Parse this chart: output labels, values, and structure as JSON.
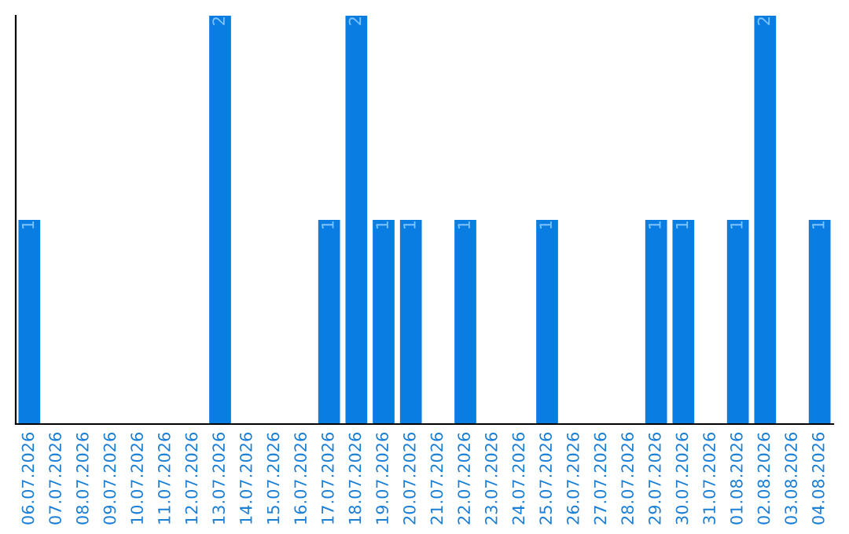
{
  "chart_data": {
    "type": "bar",
    "categories": [
      "06.07.2026",
      "07.07.2026",
      "08.07.2026",
      "09.07.2026",
      "10.07.2026",
      "11.07.2026",
      "12.07.2026",
      "13.07.2026",
      "14.07.2026",
      "15.07.2026",
      "16.07.2026",
      "17.07.2026",
      "18.07.2026",
      "19.07.2026",
      "20.07.2026",
      "21.07.2026",
      "22.07.2026",
      "23.07.2026",
      "24.07.2026",
      "25.07.2026",
      "26.07.2026",
      "27.07.2026",
      "28.07.2026",
      "29.07.2026",
      "30.07.2026",
      "31.07.2026",
      "01.08.2026",
      "02.08.2026",
      "03.08.2026",
      "04.08.2026"
    ],
    "values": [
      1,
      0,
      0,
      0,
      0,
      0,
      0,
      2,
      0,
      0,
      0,
      1,
      2,
      1,
      1,
      0,
      1,
      0,
      0,
      1,
      0,
      0,
      0,
      1,
      1,
      0,
      1,
      2,
      0,
      1
    ],
    "value_labels": [
      "1",
      null,
      null,
      null,
      null,
      null,
      null,
      "2",
      null,
      null,
      null,
      "1",
      "2",
      "1",
      "1",
      null,
      "1",
      null,
      null,
      "1",
      null,
      null,
      null,
      "1",
      "1",
      null,
      "1",
      "2",
      null,
      "1"
    ],
    "color": "#0a7de3",
    "grid": false,
    "legend": false,
    "tick_labels": "x"
  }
}
